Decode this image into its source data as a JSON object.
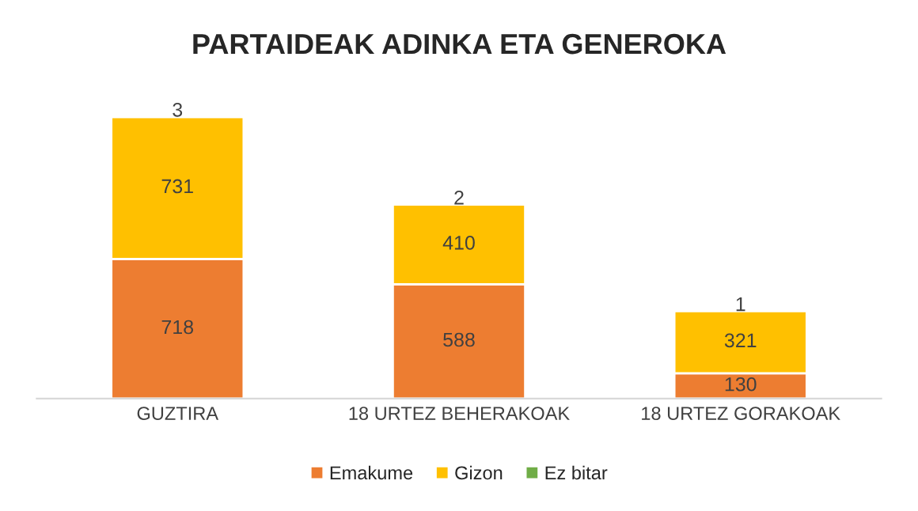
{
  "chart_data": {
    "type": "bar",
    "title": "PARTAIDEAK ADINKA ETA GENEROKA",
    "categories": [
      "GUZTIRA",
      "18 URTEZ BEHERAKOAK",
      "18 URTEZ GORAKOAK"
    ],
    "stacked": true,
    "data_labels": true,
    "legend": "bottom",
    "grid": false,
    "series": [
      {
        "name": "Emakume",
        "color": "#ed7d31",
        "values": [
          718,
          588,
          130
        ]
      },
      {
        "name": "Gizon",
        "color": "#ffc000",
        "values": [
          731,
          410,
          321
        ]
      },
      {
        "name": "Ez bitar",
        "color": "#70ad47",
        "values": [
          3,
          2,
          1
        ]
      }
    ]
  }
}
